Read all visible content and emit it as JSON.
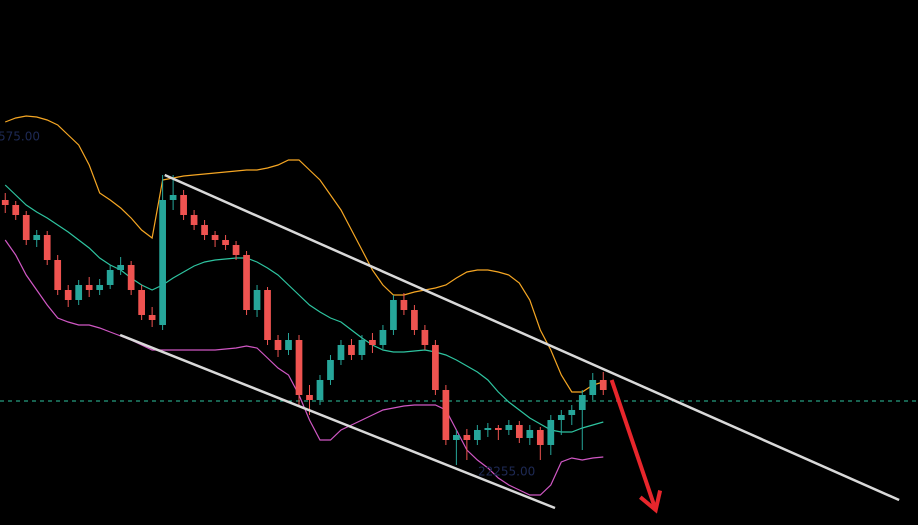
{
  "chart_data": {
    "type": "candlestick",
    "xlim": [
      -0.5,
      87
    ],
    "ylim": [
      22200,
      22725
    ],
    "up_color": "#26a69a",
    "down_color": "#ef5350",
    "open": [
      22525,
      22520,
      22510,
      22485,
      22490,
      22465,
      22435,
      22425,
      22440,
      22435,
      22440,
      22455,
      22460,
      22435,
      22410,
      22400,
      22525,
      22530,
      22510,
      22500,
      22490,
      22485,
      22480,
      22470,
      22415,
      22435,
      22385,
      22375,
      22385,
      22330,
      22325,
      22345,
      22365,
      22380,
      22370,
      22385,
      22380,
      22395,
      22425,
      22415,
      22395,
      22380,
      22335,
      22285,
      22290,
      22285,
      22295,
      22297,
      22295,
      22300,
      22287,
      22295,
      22280,
      22305,
      22310,
      22315,
      22330,
      22345
    ],
    "high": [
      22532,
      22524,
      22514,
      22495,
      22494,
      22470,
      22440,
      22445,
      22448,
      22446,
      22460,
      22468,
      22464,
      22440,
      22418,
      22550,
      22550,
      22535,
      22515,
      22505,
      22494,
      22490,
      22484,
      22474,
      22440,
      22438,
      22390,
      22392,
      22390,
      22340,
      22350,
      22370,
      22385,
      22386,
      22390,
      22392,
      22400,
      22430,
      22432,
      22420,
      22400,
      22385,
      22340,
      22295,
      22296,
      22300,
      22302,
      22300,
      22305,
      22304,
      22300,
      22298,
      22310,
      22315,
      22320,
      22335,
      22352,
      22353
    ],
    "low": [
      22512,
      22505,
      22480,
      22478,
      22460,
      22430,
      22418,
      22420,
      22428,
      22430,
      22436,
      22450,
      22430,
      22405,
      22398,
      22395,
      22515,
      22505,
      22495,
      22485,
      22478,
      22475,
      22465,
      22410,
      22408,
      22380,
      22368,
      22370,
      22320,
      22310,
      22320,
      22340,
      22360,
      22365,
      22365,
      22372,
      22376,
      22390,
      22410,
      22390,
      22375,
      22330,
      22280,
      22260,
      22265,
      22280,
      22288,
      22285,
      22290,
      22282,
      22280,
      22265,
      22270,
      22290,
      22300,
      22275,
      22325,
      22330
    ],
    "close": [
      22520,
      22510,
      22485,
      22490,
      22465,
      22435,
      22425,
      22440,
      22435,
      22440,
      22455,
      22460,
      22435,
      22410,
      22405,
      22525,
      22530,
      22510,
      22500,
      22490,
      22485,
      22480,
      22470,
      22415,
      22435,
      22385,
      22375,
      22385,
      22330,
      22325,
      22345,
      22365,
      22380,
      22370,
      22385,
      22380,
      22395,
      22425,
      22415,
      22395,
      22380,
      22335,
      22285,
      22290,
      22285,
      22295,
      22297,
      22295,
      22300,
      22287,
      22295,
      22280,
      22305,
      22310,
      22315,
      22330,
      22345,
      22335
    ],
    "bands": [
      {
        "color": "#f5a623",
        "values": [
          22603,
          22607,
          22609,
          22608,
          22605,
          22600,
          22590,
          22580,
          22560,
          22532,
          22525,
          22517,
          22507,
          22495,
          22487,
          22545,
          22547,
          22549,
          22550,
          22551,
          22552,
          22553,
          22554,
          22555,
          22555,
          22557,
          22560,
          22565,
          22565,
          22555,
          22545,
          22530,
          22515,
          22495,
          22475,
          22455,
          22440,
          22430,
          22430,
          22433,
          22435,
          22437,
          22440,
          22447,
          22453,
          22455,
          22455,
          22453,
          22450,
          22442,
          22425,
          22395,
          22375,
          22350,
          22333,
          22333,
          22340,
          22343
        ]
      },
      {
        "color": "#2ec4a0",
        "values": [
          22540,
          22530,
          22520,
          22513,
          22507,
          22500,
          22493,
          22485,
          22477,
          22467,
          22460,
          22455,
          22447,
          22440,
          22435,
          22440,
          22447,
          22453,
          22459,
          22463,
          22465,
          22466,
          22467,
          22467,
          22463,
          22457,
          22450,
          22440,
          22430,
          22420,
          22413,
          22407,
          22403,
          22395,
          22387,
          22380,
          22375,
          22373,
          22373,
          22374,
          22375,
          22373,
          22370,
          22365,
          22359,
          22353,
          22345,
          22333,
          22323,
          22315,
          22307,
          22301,
          22295,
          22293,
          22293,
          22297,
          22300,
          22303
        ]
      },
      {
        "color": "#d057c4",
        "values": [
          22485,
          22470,
          22450,
          22435,
          22420,
          22407,
          22403,
          22400,
          22400,
          22397,
          22393,
          22389,
          22385,
          22380,
          22375,
          22375,
          22375,
          22375,
          22375,
          22375,
          22375,
          22376,
          22377,
          22379,
          22377,
          22367,
          22357,
          22350,
          22330,
          22305,
          22285,
          22285,
          22295,
          22300,
          22305,
          22310,
          22315,
          22317,
          22319,
          22320,
          22320,
          22320,
          22315,
          22295,
          22275,
          22265,
          22257,
          22247,
          22240,
          22235,
          22230,
          22230,
          22240,
          22263,
          22267,
          22265,
          22267,
          22268
        ]
      }
    ],
    "price_line": 22324,
    "price_line_color": "#2ec4a0",
    "trendlines": [
      {
        "x": [
          15.2,
          85.2
        ],
        "y": [
          22550,
          22225
        ],
        "color": "#d9d9d9"
      },
      {
        "x": [
          10.95,
          52.4
        ],
        "y": [
          22390,
          22217
        ],
        "color": "#d9d9d9"
      }
    ],
    "arrow": {
      "x": [
        57.8,
        62
      ],
      "y": [
        22345,
        22215
      ],
      "color": "#e8262c"
    },
    "labels": [
      "575.00",
      "22255.00"
    ]
  }
}
